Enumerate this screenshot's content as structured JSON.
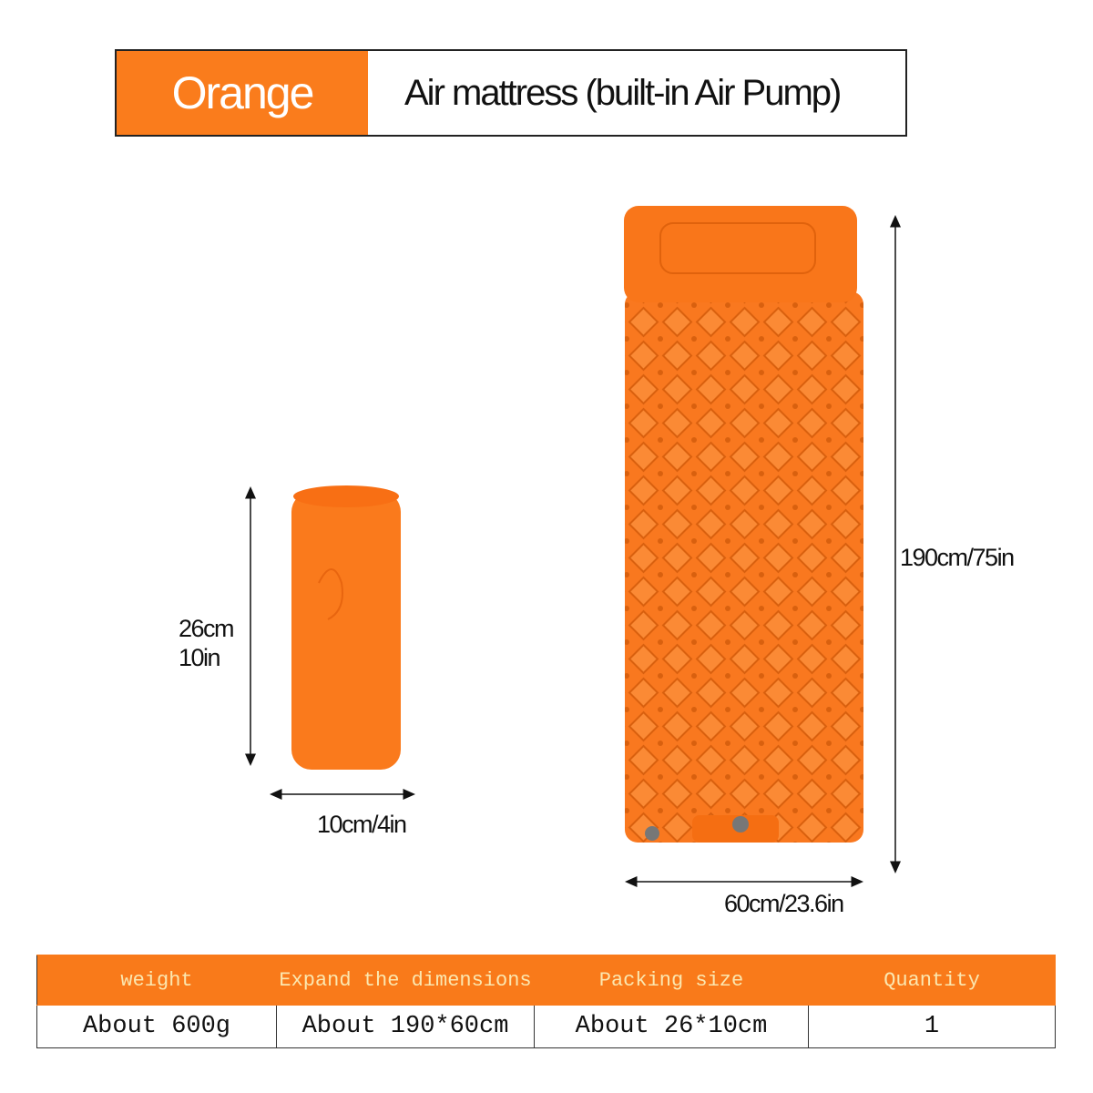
{
  "header": {
    "color_label": "Orange",
    "product_label": "Air mattress (built-in Air Pump)"
  },
  "colors": {
    "brand_orange": "#fa7c1c",
    "table_header_text": "#fbe7b0"
  },
  "dimensions": {
    "packed_height": "26cm",
    "packed_height_in": "10in",
    "packed_width": "10cm/4in",
    "expanded_length": "190cm/75in",
    "expanded_width": "60cm/23.6in"
  },
  "spec_table": {
    "headers": [
      "weight",
      "Expand the dimensions",
      "Packing size",
      "Quantity"
    ],
    "row": [
      "About 600g",
      "About 190*60cm",
      "About 26*10cm",
      "1"
    ]
  }
}
